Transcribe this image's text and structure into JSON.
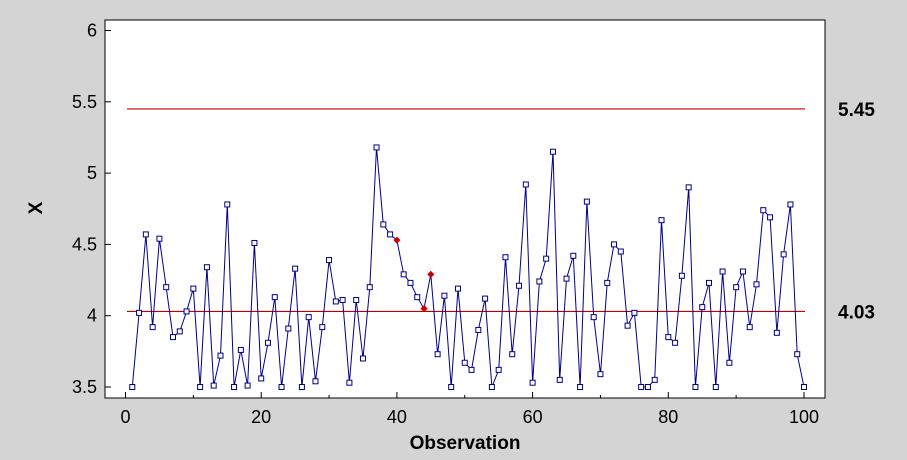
{
  "chart_data": {
    "type": "line",
    "title": "",
    "xlabel": "Observation",
    "ylabel": "X",
    "xlim": [
      0,
      100
    ],
    "ylim": [
      3.45,
      6
    ],
    "x_ticks": [
      "0",
      "20",
      "40",
      "60",
      "80",
      "100"
    ],
    "y_ticks": [
      "3.5",
      "4",
      "4.5",
      "5",
      "5.5",
      "6"
    ],
    "grid": false,
    "upper_limit": {
      "value": 5.45,
      "label": "5.45",
      "color": "#c00000"
    },
    "center_line": {
      "value": 4.03,
      "label": "4.03",
      "color": "#c00000"
    },
    "line_color": "#00008b",
    "highlight_color": "#cc0000",
    "highlighted_x": [
      40,
      44,
      45
    ],
    "x": [
      1,
      2,
      3,
      4,
      5,
      6,
      7,
      8,
      9,
      10,
      11,
      12,
      13,
      14,
      15,
      16,
      17,
      18,
      19,
      20,
      21,
      22,
      23,
      24,
      25,
      26,
      27,
      28,
      29,
      30,
      31,
      32,
      33,
      34,
      35,
      36,
      37,
      38,
      39,
      40,
      41,
      42,
      43,
      44,
      45,
      46,
      47,
      48,
      49,
      50,
      51,
      52,
      53,
      54,
      55,
      56,
      57,
      58,
      59,
      60,
      61,
      62,
      63,
      64,
      65,
      66,
      67,
      68,
      69,
      70,
      71,
      72,
      73,
      74,
      75,
      76,
      77,
      78,
      79,
      80,
      81,
      82,
      83,
      84,
      85,
      86,
      87,
      88,
      89,
      90,
      91,
      92,
      93,
      94,
      95,
      96,
      97,
      98,
      99,
      100
    ],
    "values": [
      3.5,
      4.02,
      4.57,
      3.92,
      4.54,
      4.2,
      3.85,
      3.89,
      4.03,
      4.19,
      3.5,
      4.34,
      3.51,
      3.72,
      4.78,
      3.5,
      3.76,
      3.51,
      4.51,
      3.56,
      3.81,
      4.13,
      3.5,
      3.91,
      4.33,
      3.5,
      3.99,
      3.54,
      3.92,
      4.39,
      4.1,
      4.11,
      3.53,
      4.11,
      3.7,
      4.2,
      5.18,
      4.64,
      4.57,
      4.53,
      4.29,
      4.23,
      4.13,
      4.05,
      4.29,
      3.73,
      4.14,
      3.5,
      4.19,
      3.67,
      3.62,
      3.9,
      4.12,
      3.5,
      3.62,
      4.41,
      3.73,
      4.21,
      4.92,
      3.53,
      4.24,
      4.4,
      5.15,
      3.55,
      4.26,
      4.42,
      3.5,
      4.8,
      3.99,
      3.59,
      4.23,
      4.5,
      4.45,
      3.93,
      4.02,
      3.5,
      3.5,
      3.55,
      4.67,
      3.85,
      3.81,
      4.28,
      4.9,
      3.5,
      4.06,
      4.23,
      3.5,
      4.31,
      3.67,
      4.2,
      4.31,
      3.92,
      4.22,
      4.74,
      4.69,
      3.88,
      4.43,
      4.78,
      3.73,
      3.5
    ]
  }
}
